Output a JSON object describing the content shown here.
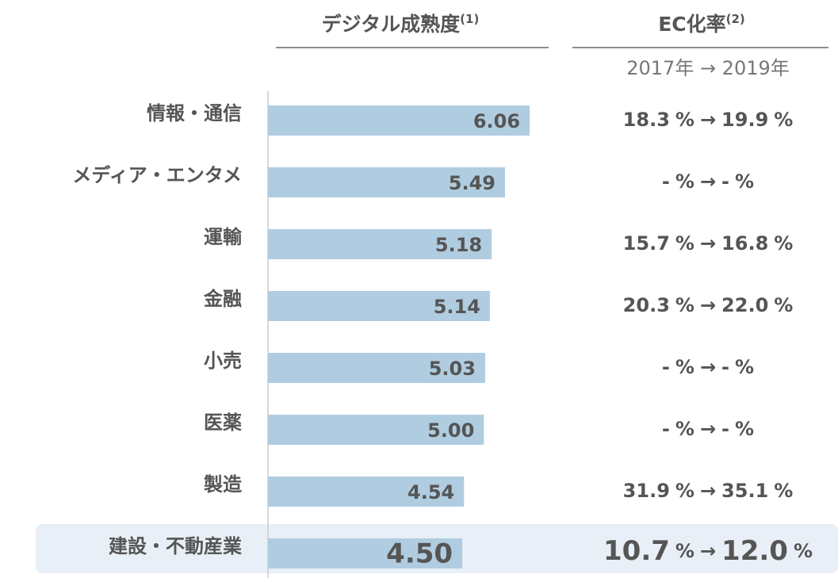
{
  "chart_data": {
    "type": "bar",
    "orientation": "horizontal",
    "title": "デジタル成熟度",
    "title_note": "(1)",
    "categories": [
      "情報・通信",
      "メディア・エンタメ",
      "運輸",
      "金融",
      "小売",
      "医薬",
      "製造",
      "建設・不動産業"
    ],
    "values": [
      6.06,
      5.49,
      5.18,
      5.14,
      5.03,
      5.0,
      4.54,
      4.5
    ],
    "value_labels": [
      "6.06",
      "5.49",
      "5.18",
      "5.14",
      "5.03",
      "5.00",
      "4.54",
      "4.50"
    ],
    "color": "#b0cce0",
    "highlight_color": "#e9eff6",
    "highlight": 7,
    "xlim": [
      0,
      6.5
    ],
    "ec_rate": {
      "title": "EC化率",
      "title_note": "(2)",
      "subtitle": "2017年 → 2019年",
      "unit": "%",
      "arrow": "→",
      "rows": [
        {
          "from": "18.3",
          "to": "19.9"
        },
        {
          "from": "-",
          "to": "-"
        },
        {
          "from": "15.7",
          "to": "16.8"
        },
        {
          "from": "20.3",
          "to": "22.0"
        },
        {
          "from": "-",
          "to": "-"
        },
        {
          "from": "-",
          "to": "-"
        },
        {
          "from": "31.9",
          "to": "35.1"
        },
        {
          "from": "10.7",
          "to": "12.0"
        }
      ]
    }
  }
}
